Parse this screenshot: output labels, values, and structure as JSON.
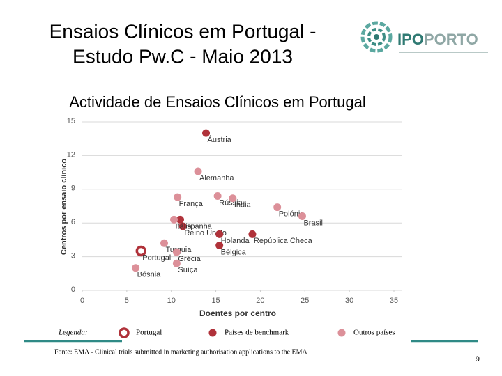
{
  "slide": {
    "title": [
      "Ensaios Clínicos em Portugal -",
      "Estudo Pw.C - Maio 2013"
    ],
    "logo": [
      "IPO",
      "PORTO"
    ],
    "source": "Fonte: EMA - Clinical trials submitted in marketing authorisation applications to the EMA",
    "page": 9
  },
  "chart_data": {
    "type": "scatter",
    "title": "Actividade de Ensaios Clínicos em Portugal",
    "x_label": "Doentes por centro",
    "y_label": "Centros por ensaio clínico",
    "xlim": [
      0,
      35
    ],
    "xticks": [
      0,
      5,
      10,
      15,
      20,
      25,
      30,
      35
    ],
    "ylim": [
      0,
      15
    ],
    "yticks": [
      0,
      3,
      6,
      9,
      12,
      15
    ],
    "grid": true,
    "legend_title": "Legenda:",
    "series": [
      {
        "name": "Portugal",
        "color": "#b0323a",
        "marker": "ring",
        "labels": [
          "Portugal"
        ],
        "x": [
          6.6
        ],
        "y": [
          3.5
        ]
      },
      {
        "name": "Países de benchmark",
        "color": "#b0323a",
        "marker": "dot",
        "labels": [
          "Áustria",
          "Espanha",
          "Reino Unido",
          "Holanda",
          "República Checa",
          "Bélgica"
        ],
        "x": [
          13.9,
          11.0,
          11.3,
          15.4,
          19.1,
          15.4
        ],
        "y": [
          14.0,
          6.3,
          5.7,
          5.0,
          5.0,
          4.0
        ]
      },
      {
        "name": "Outros países",
        "color": "#dc9099",
        "marker": "dot",
        "labels": [
          "Alemanha",
          "França",
          "Rússia",
          "Índia",
          "Polónia",
          "Brasil",
          "Itália",
          "Turquia",
          "Grécia",
          "Suíça",
          "Bósnia"
        ],
        "x": [
          13.0,
          10.7,
          15.2,
          16.9,
          21.9,
          24.7,
          10.3,
          9.2,
          10.6,
          10.6,
          6.0
        ],
        "y": [
          10.6,
          8.3,
          8.4,
          8.2,
          7.4,
          6.6,
          6.3,
          4.2,
          3.4,
          2.4,
          2.0
        ]
      }
    ]
  }
}
